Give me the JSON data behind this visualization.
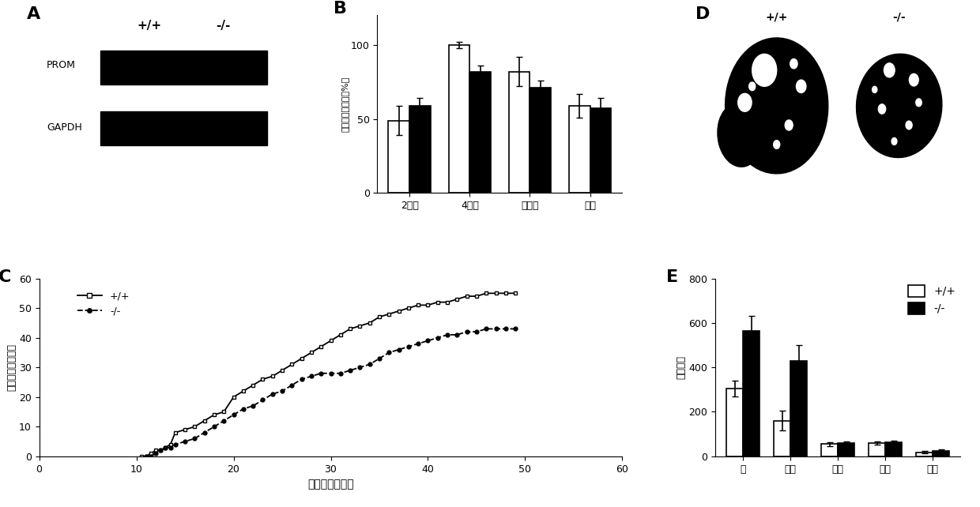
{
  "panel_B": {
    "categories": [
      "2细胞",
      "4细胞",
      "桑椹胚",
      "囊胚"
    ],
    "plus_values": [
      49,
      100,
      82,
      59
    ],
    "minus_values": [
      59,
      82,
      71,
      57
    ],
    "plus_errors": [
      10,
      2,
      10,
      8
    ],
    "minus_errors": [
      5,
      4,
      5,
      7
    ],
    "ylabel": "受精卵各期比率（%）",
    "ylim": [
      0,
      120
    ],
    "yticks": [
      0,
      50,
      100
    ]
  },
  "panel_C": {
    "plus_x": [
      10.5,
      11,
      11.5,
      12,
      12.5,
      13,
      13.5,
      14,
      15,
      16,
      17,
      18,
      19,
      20,
      21,
      22,
      23,
      24,
      25,
      26,
      27,
      28,
      29,
      30,
      31,
      32,
      33,
      34,
      35,
      36,
      37,
      38,
      39,
      40,
      41,
      42,
      43,
      44,
      45,
      46,
      47,
      48,
      49
    ],
    "plus_y": [
      0,
      0,
      1,
      2,
      2,
      3,
      4,
      8,
      9,
      10,
      12,
      14,
      15,
      20,
      22,
      24,
      26,
      27,
      29,
      31,
      33,
      35,
      37,
      39,
      41,
      43,
      44,
      45,
      47,
      48,
      49,
      50,
      51,
      51,
      52,
      52,
      53,
      54,
      54,
      55,
      55,
      55,
      55
    ],
    "minus_x": [
      11,
      11.5,
      12,
      12.5,
      13,
      13.5,
      14,
      15,
      16,
      17,
      18,
      19,
      20,
      21,
      22,
      23,
      24,
      25,
      26,
      27,
      28,
      29,
      30,
      31,
      32,
      33,
      34,
      35,
      36,
      37,
      38,
      39,
      40,
      41,
      42,
      43,
      44,
      45,
      46,
      47,
      48,
      49
    ],
    "minus_y": [
      0,
      0,
      1,
      2,
      3,
      3,
      4,
      5,
      6,
      8,
      10,
      12,
      14,
      16,
      17,
      19,
      21,
      22,
      24,
      26,
      27,
      28,
      28,
      28,
      29,
      30,
      31,
      33,
      35,
      36,
      37,
      38,
      39,
      40,
      41,
      41,
      42,
      42,
      43,
      43,
      43,
      43
    ],
    "xlabel": "雌鼠年龄（周）",
    "ylabel": "累计生仔数（只）",
    "ylim": [
      0,
      60
    ],
    "xlim": [
      0,
      60
    ],
    "yticks": [
      0,
      10,
      20,
      30,
      40,
      50,
      60
    ],
    "xticks": [
      0,
      10,
      20,
      30,
      40,
      50,
      60
    ]
  },
  "panel_E": {
    "categories": [
      "总",
      "原始",
      "初级",
      "次级",
      "有腔"
    ],
    "plus_values": [
      305,
      160,
      55,
      60,
      18
    ],
    "minus_values": [
      565,
      430,
      60,
      62,
      25
    ],
    "plus_errors": [
      35,
      45,
      10,
      8,
      5
    ],
    "minus_errors": [
      65,
      70,
      8,
      7,
      6
    ],
    "ylabel": "各级卵泡",
    "ylim": [
      0,
      800
    ],
    "yticks": [
      0,
      200,
      400,
      600,
      800
    ]
  },
  "panel_A": {
    "labels": [
      "PROM",
      "GAPDH"
    ],
    "groups": [
      "+/+",
      "-/-"
    ]
  }
}
